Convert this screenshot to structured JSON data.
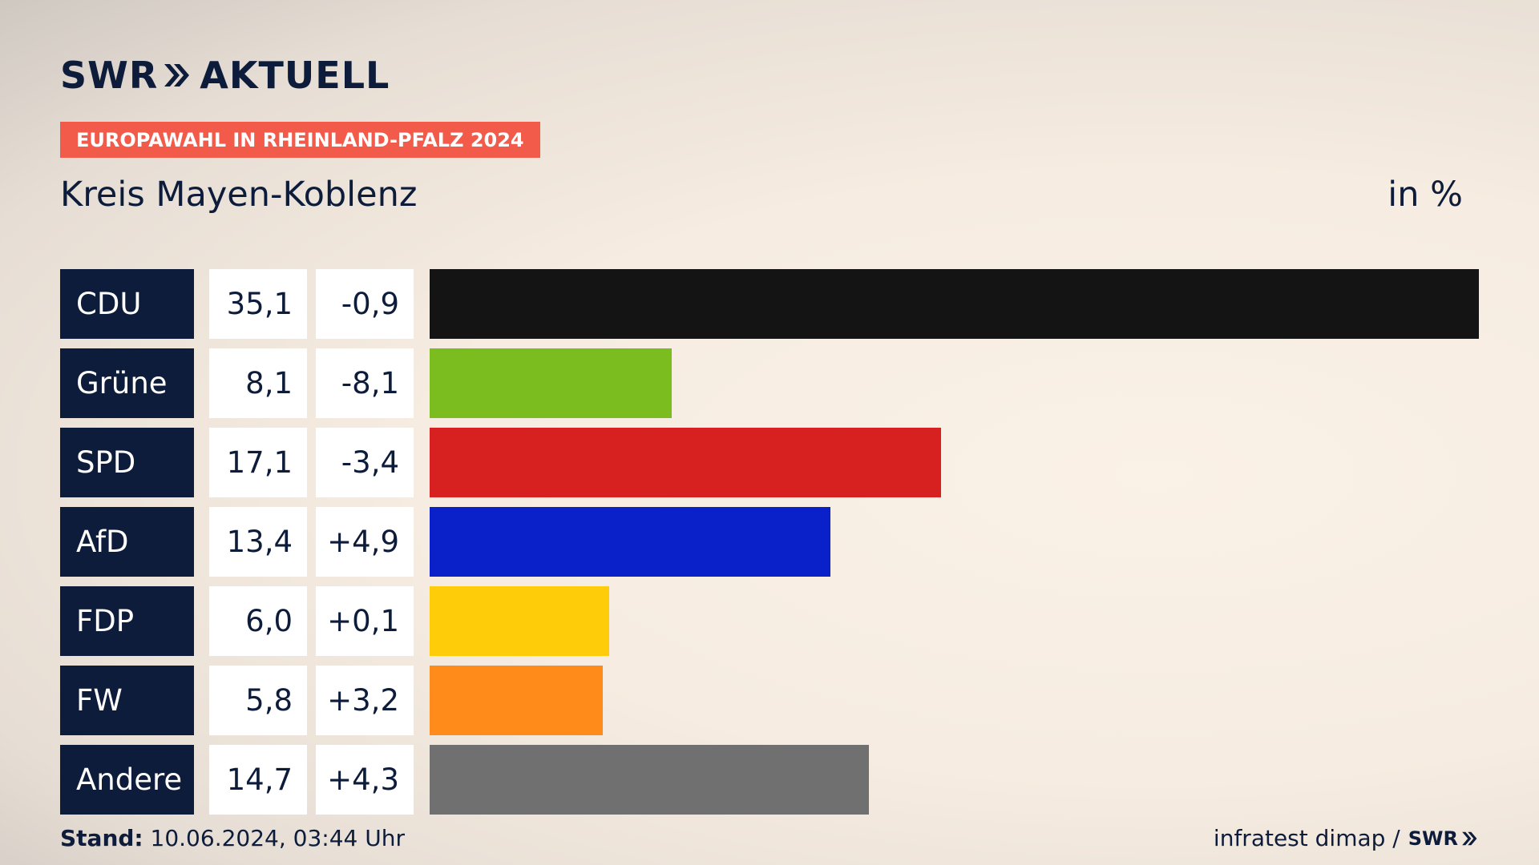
{
  "header": {
    "logo_left": "SWR",
    "logo_right": "AKTUELL",
    "badge": "EUROPAWAHL IN RHEINLAND-PFALZ 2024",
    "subtitle": "Kreis Mayen-Koblenz",
    "unit": "in %"
  },
  "footer": {
    "stand_label": "Stand:",
    "stand_value": "10.06.2024, 03:44 Uhr",
    "source": "infratest dimap /",
    "source_logo": "SWR"
  },
  "chart_data": {
    "type": "bar",
    "categories": [
      "CDU",
      "Grüne",
      "SPD",
      "AfD",
      "FDP",
      "FW",
      "Andere"
    ],
    "values": [
      35.1,
      8.1,
      17.1,
      13.4,
      6.0,
      5.8,
      14.7
    ],
    "value_labels": [
      "35,1",
      "8,1",
      "17,1",
      "13,4",
      "6,0",
      "5,8",
      "14,7"
    ],
    "changes": [
      -0.9,
      -8.1,
      -3.4,
      4.9,
      0.1,
      3.2,
      4.3
    ],
    "change_labels": [
      "-0,9",
      "-8,1",
      "-3,4",
      "+4,9",
      "+0,1",
      "+3,2",
      "+4,3"
    ],
    "colors": [
      "#141414",
      "#7bbd1e",
      "#d72020",
      "#0a21c9",
      "#ffcc0a",
      "#ff8c1a",
      "#707071"
    ],
    "orientation": "horizontal"
  }
}
